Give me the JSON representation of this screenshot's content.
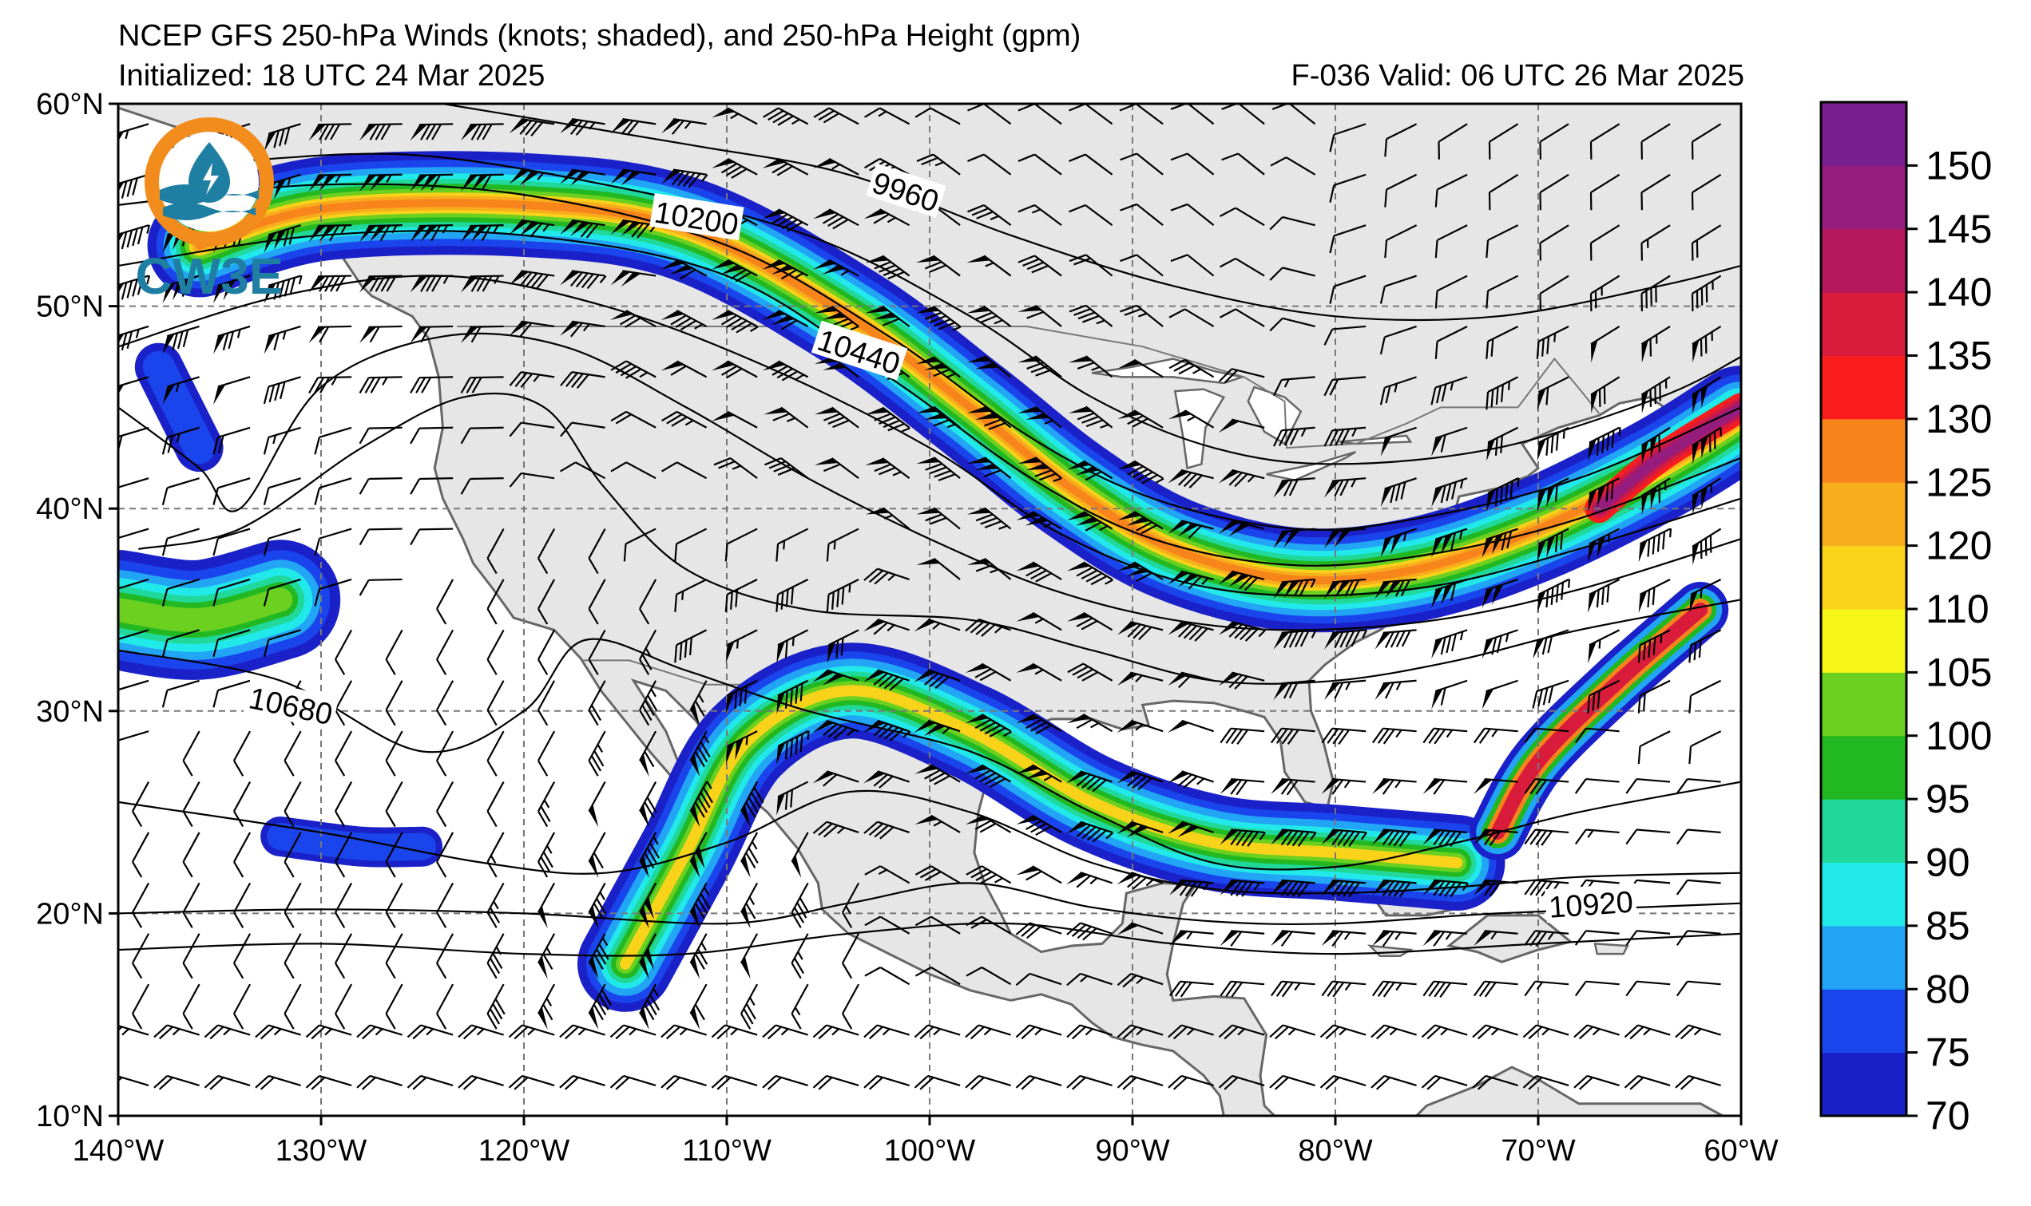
{
  "header": {
    "title": "NCEP GFS 250-hPa Winds (knots; shaded), and 250-hPa Height (gpm)",
    "initialized": "Initialized: 18 UTC 24 Mar 2025",
    "valid": "F-036  Valid: 06 UTC 26 Mar 2025"
  },
  "logo": {
    "text": "CW3E",
    "ring_color": "#f28c1c",
    "wave_color": "#1f7fa3",
    "icon": "lightning-drop-icon"
  },
  "map": {
    "lon_range": [
      -140,
      -60
    ],
    "lat_range": [
      10,
      60
    ],
    "lon_ticks": [
      {
        "value": -140,
        "label": "140°W"
      },
      {
        "value": -130,
        "label": "130°W"
      },
      {
        "value": -120,
        "label": "120°W"
      },
      {
        "value": -110,
        "label": "110°W"
      },
      {
        "value": -100,
        "label": "100°W"
      },
      {
        "value": -90,
        "label": "90°W"
      },
      {
        "value": -80,
        "label": "80°W"
      },
      {
        "value": -70,
        "label": "70°W"
      },
      {
        "value": -60,
        "label": "60°W"
      }
    ],
    "lat_ticks": [
      {
        "value": 10,
        "label": "10°N"
      },
      {
        "value": 20,
        "label": "20°N"
      },
      {
        "value": 30,
        "label": "30°N"
      },
      {
        "value": 40,
        "label": "40°N"
      },
      {
        "value": 50,
        "label": "50°N"
      },
      {
        "value": 60,
        "label": "60°N"
      }
    ],
    "grid": true,
    "land_color": "#e6e6e6",
    "ocean_color": "#ffffff",
    "coast_color": "#666666",
    "contour_labels": [
      {
        "text": "9960",
        "lon": -101.2,
        "lat": 55.6,
        "angle": 18
      },
      {
        "text": "10200",
        "lon": -111.5,
        "lat": 54.3,
        "angle": 9
      },
      {
        "text": "10440",
        "lon": -103.5,
        "lat": 47.7,
        "angle": 18
      },
      {
        "text": "10680",
        "lon": -131.5,
        "lat": 30.2,
        "angle": 12
      },
      {
        "text": "10920",
        "lon": -67.4,
        "lat": 20.4,
        "angle": -4
      }
    ]
  },
  "colorbar": {
    "levels": [
      70,
      75,
      80,
      85,
      90,
      95,
      100,
      105,
      110,
      120,
      125,
      130,
      135,
      140,
      145,
      150,
      155
    ],
    "labels": [
      "70",
      "75",
      "80",
      "85",
      "90",
      "95",
      "100",
      "105",
      "110",
      "120",
      "125",
      "130",
      "135",
      "140",
      "145",
      "150"
    ],
    "colors": [
      "#1b21c8",
      "#1b45ec",
      "#22a5f5",
      "#22e9e9",
      "#1fd89a",
      "#22b822",
      "#6bd01f",
      "#f5f518",
      "#f9d21a",
      "#f8ad1d",
      "#f8851c",
      "#f91d1d",
      "#d91c3c",
      "#b5195c",
      "#961c7e",
      "#7a1f8f"
    ]
  }
}
